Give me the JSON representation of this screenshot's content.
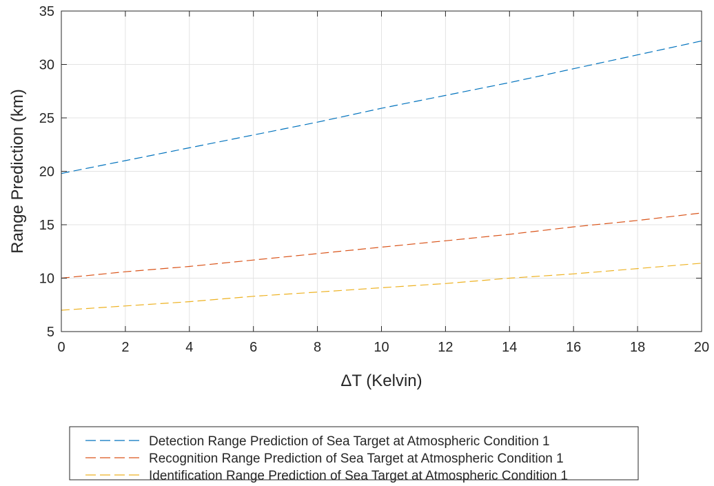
{
  "chart_data": {
    "type": "line",
    "xlabel": "ΔT (Kelvin)",
    "ylabel": "Range Prediction (km)",
    "xlim": [
      0,
      20
    ],
    "ylim": [
      5,
      35
    ],
    "xticks": [
      0,
      2,
      4,
      6,
      8,
      10,
      12,
      14,
      16,
      18,
      20
    ],
    "yticks": [
      5,
      10,
      15,
      20,
      25,
      30,
      35
    ],
    "grid": true,
    "line_style": "dashed",
    "legend_position": "below",
    "x": [
      0,
      2,
      4,
      6,
      8,
      10,
      12,
      14,
      16,
      18,
      20
    ],
    "series": [
      {
        "name": "Detection Range Prediction of Sea Target at Atmospheric Condition 1",
        "color": "#0072BD",
        "values": [
          19.8,
          21.0,
          22.2,
          23.4,
          24.6,
          25.9,
          27.1,
          28.3,
          29.6,
          30.9,
          32.2
        ]
      },
      {
        "name": "Recognition Range Prediction of Sea Target at Atmospheric Condition 1",
        "color": "#D95319",
        "values": [
          10.0,
          10.6,
          11.1,
          11.7,
          12.3,
          12.9,
          13.5,
          14.1,
          14.8,
          15.4,
          16.1
        ]
      },
      {
        "name": "Identification Range Prediction of Sea Target at Atmospheric Condition 1",
        "color": "#EDB120",
        "values": [
          7.0,
          7.4,
          7.8,
          8.3,
          8.7,
          9.1,
          9.5,
          10.0,
          10.4,
          10.9,
          11.4
        ]
      }
    ]
  }
}
